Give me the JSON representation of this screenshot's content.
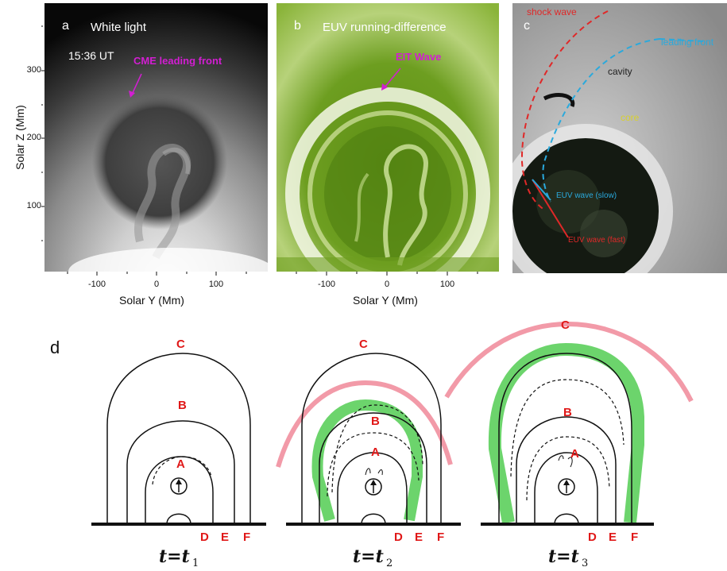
{
  "panel_a": {
    "letter": "a",
    "title": "White light",
    "time": "15:36 UT",
    "annotation": "CME leading front",
    "y_axis_title": "Solar Z (Mm)",
    "y_ticks": [
      "300",
      "200",
      "100"
    ],
    "x_ticks": [
      "-100",
      "0",
      "100"
    ],
    "x_axis_title": "Solar Y (Mm)"
  },
  "panel_b": {
    "letter": "b",
    "title": "EUV running-difference",
    "annotation": "EIT Wave",
    "x_ticks": [
      "-100",
      "0",
      "100"
    ],
    "x_axis_title": "Solar Y (Mm)"
  },
  "panel_c": {
    "letter": "c",
    "shock_wave": "shock wave",
    "leading_front": "leading front",
    "cavity": "cavity",
    "core": "core",
    "euv_slow": "EUV wave (slow)",
    "euv_fast": "EUV wave (fast)"
  },
  "panel_d": {
    "letter": "d",
    "loop_labels": [
      "A",
      "B",
      "C",
      "D",
      "E",
      "F"
    ],
    "times": [
      {
        "t": "t=t",
        "sub": "1"
      },
      {
        "t": "t=t",
        "sub": "2"
      },
      {
        "t": "t=t",
        "sub": "3"
      }
    ]
  },
  "colors": {
    "magenta": "#d21ed2",
    "euv_green": "#6a9a1c",
    "shock_red": "#e02828",
    "front_blue": "#2aa9dc",
    "core_yellow": "#d8d030",
    "label_red": "#e01818",
    "wave_green": "#5ccf5c",
    "shock_pink": "#f29aa8"
  }
}
